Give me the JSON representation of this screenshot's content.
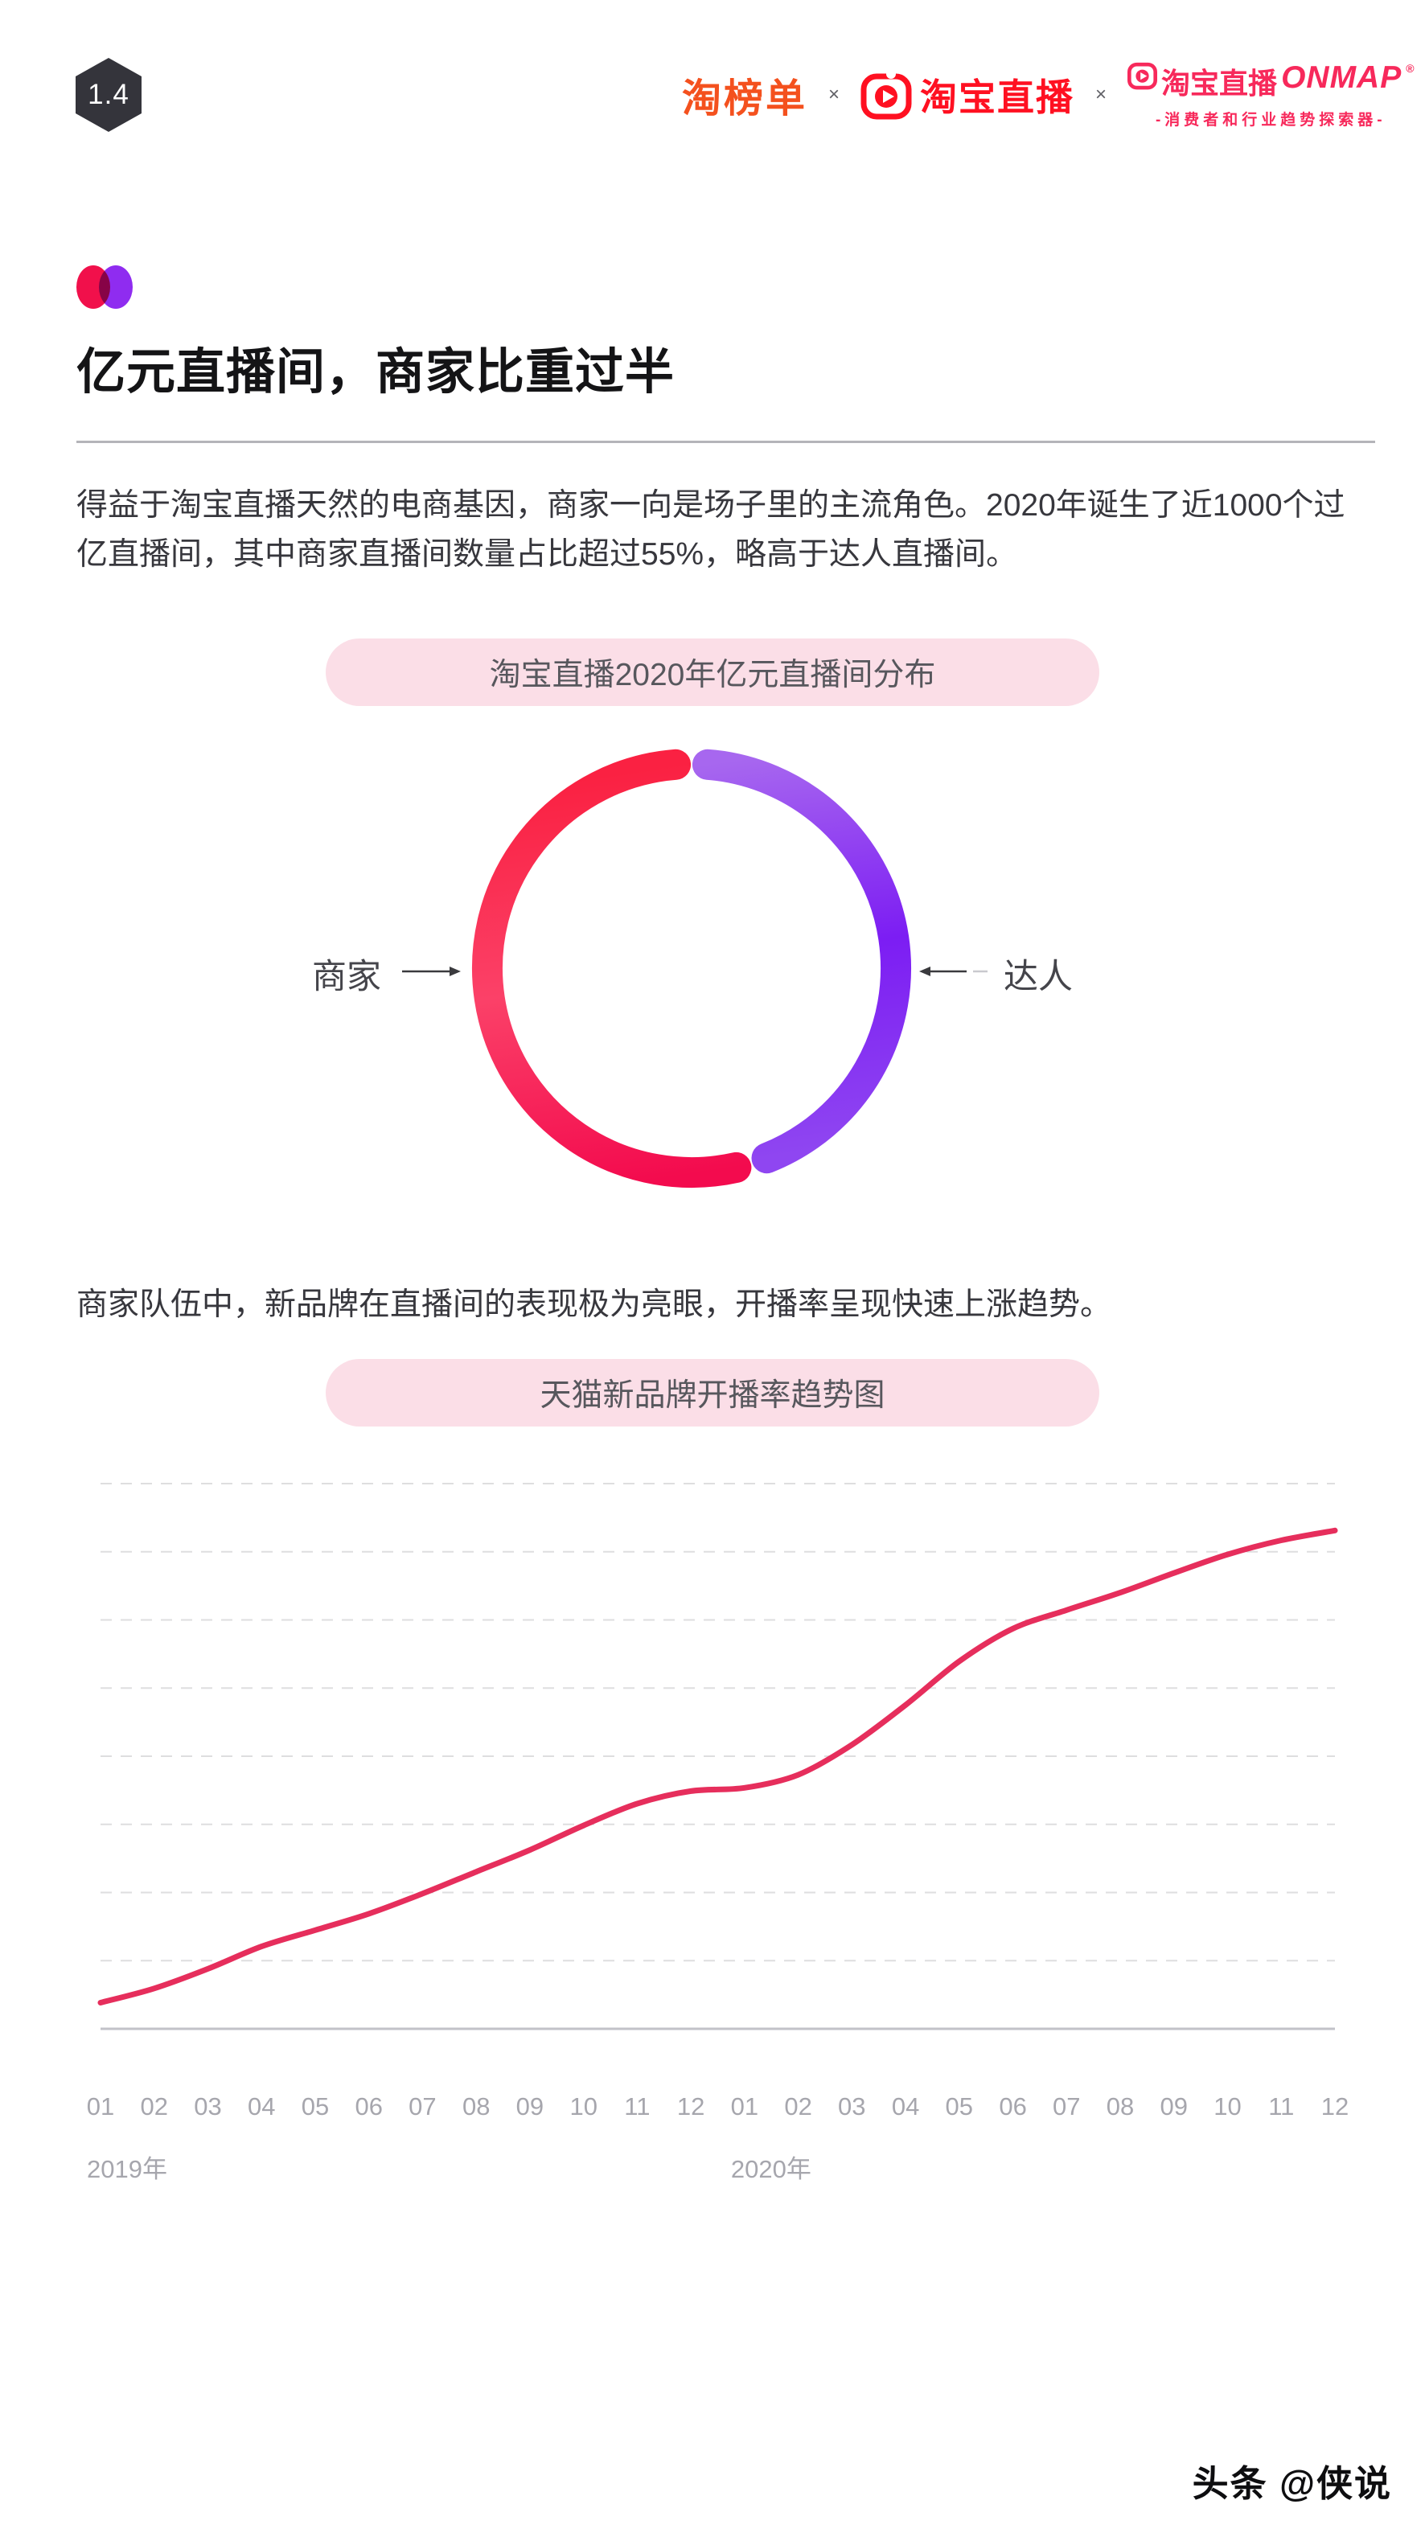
{
  "badge": {
    "number": "1.4"
  },
  "header": {
    "brand1": "淘榜单",
    "sep1": "×",
    "brand2": "淘宝直播",
    "sep2": "×",
    "brand3_cn": "淘宝直播",
    "brand3_en": "ONMAP",
    "brand3_reg": "®",
    "brand3_tagline": "-消费者和行业趋势探索器-",
    "colors": {
      "brand1": "#f4511e",
      "brand2": "#ff1021",
      "brand3": "#f7295b"
    }
  },
  "section": {
    "title": "亿元直播间，商家比重过半",
    "dot_color_left": "#f1104b",
    "dot_color_right": "#8f2cf0"
  },
  "paragraphs": {
    "p1": "得益于淘宝直播天然的电商基因，商家一向是场子里的主流角色。2020年诞生了近1000个过亿直播间，其中商家直播间数量占比超过55%，略高于达人直播间。",
    "p2": "商家队伍中，新品牌在直播间的表现极为亮眼，开播率呈现快速上涨趋势。"
  },
  "pill_bg": "#fbdee7",
  "footer": {
    "credit": "头条 @侠说"
  },
  "chart_data": [
    {
      "type": "pie",
      "subtype": "donut-ring",
      "title": "淘宝直播2020年亿元直播间分布",
      "labels": [
        "商家",
        "达人"
      ],
      "values": [
        55,
        45
      ],
      "value_note": "商家直播间数量占比超过55%，略高于达人直播间",
      "colors": [
        [
          "#fa2142",
          "#fb4168",
          "#f30b4e"
        ],
        [
          "#a767ef",
          "#7c1df3",
          "#8f46f1"
        ]
      ],
      "gap_degrees": 9,
      "rotation_note": "gaps centered at top and bottom; merchant arc on left, talent arc on right",
      "legend_position": "side labels with arrows"
    },
    {
      "type": "line",
      "title": "天猫新品牌开播率趋势图",
      "categories": [
        "01",
        "02",
        "03",
        "04",
        "05",
        "06",
        "07",
        "08",
        "09",
        "10",
        "11",
        "12",
        "01",
        "02",
        "03",
        "04",
        "05",
        "06",
        "07",
        "08",
        "09",
        "10",
        "11",
        "12"
      ],
      "x_groups": [
        {
          "label": "2019年",
          "index": 0
        },
        {
          "label": "2020年",
          "index": 12
        }
      ],
      "values": [
        4.8,
        7.4,
        11.0,
        15.1,
        18.1,
        21.1,
        24.8,
        28.8,
        32.8,
        37.3,
        41.3,
        43.6,
        44.2,
        46.6,
        52.1,
        59.4,
        67.4,
        73.4,
        76.8,
        80.0,
        83.6,
        87.0,
        89.6,
        91.4
      ],
      "values_note": "normalized 0-100 (no y-axis labels shown in chart)",
      "ylim": [
        0,
        100
      ],
      "xlabel": "",
      "ylabel": "",
      "grid": "8 dashed horizontal gridlines, solid bottom axis",
      "legend": "none",
      "line_color": "#e62e5c",
      "grid_color": "#dededf",
      "axis_color": "#c2c2c8",
      "tick_color": "#a6a6ad"
    }
  ]
}
